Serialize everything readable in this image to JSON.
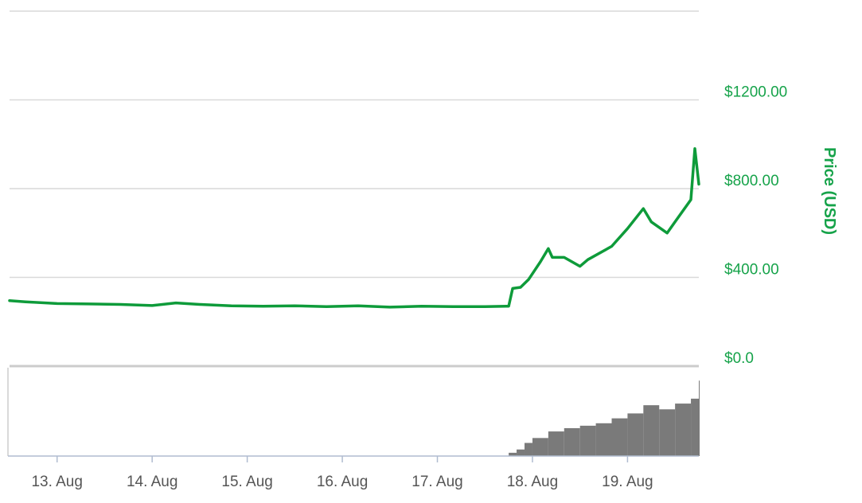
{
  "chart_data": {
    "type": "line",
    "title": "",
    "xlabel": "",
    "ylabel": "Price (USD)",
    "x_tick_labels": [
      "13. Aug",
      "14. Aug",
      "15. Aug",
      "16. Aug",
      "17. Aug",
      "18. Aug",
      "19. Aug"
    ],
    "y_tick_labels": [
      "$0.0",
      "$400.00",
      "$800.00",
      "$1200.00"
    ],
    "ylim": [
      0,
      1600
    ],
    "xlim": [
      "2017-08-12 12:00",
      "2017-08-19 18:00"
    ],
    "grid": true,
    "legend": "none",
    "colors": {
      "price_line": "#0e9b3a",
      "axis_text": "#16a34a",
      "tick_text": "#555555",
      "grid": "#d9d9d9",
      "volume": "#7a7a7a"
    },
    "series": [
      {
        "name": "Price (USD)",
        "x": [
          "2017-08-12 12:00",
          "2017-08-12 16:00",
          "2017-08-13 00:00",
          "2017-08-13 08:00",
          "2017-08-13 16:00",
          "2017-08-14 00:00",
          "2017-08-14 06:00",
          "2017-08-14 12:00",
          "2017-08-14 20:00",
          "2017-08-15 04:00",
          "2017-08-15 12:00",
          "2017-08-15 20:00",
          "2017-08-16 04:00",
          "2017-08-16 12:00",
          "2017-08-16 20:00",
          "2017-08-17 04:00",
          "2017-08-17 12:00",
          "2017-08-17 18:00",
          "2017-08-17 19:00",
          "2017-08-17 21:00",
          "2017-08-17 23:00",
          "2017-08-18 02:00",
          "2017-08-18 04:00",
          "2017-08-18 05:00",
          "2017-08-18 08:00",
          "2017-08-18 12:00",
          "2017-08-18 14:00",
          "2017-08-18 20:00",
          "2017-08-19 00:00",
          "2017-08-19 04:00",
          "2017-08-19 06:00",
          "2017-08-19 10:00",
          "2017-08-19 12:00",
          "2017-08-19 16:00",
          "2017-08-19 17:00",
          "2017-08-19 18:00"
        ],
        "y": [
          295,
          290,
          282,
          280,
          278,
          273,
          285,
          278,
          272,
          270,
          272,
          268,
          272,
          266,
          270,
          268,
          268,
          270,
          350,
          355,
          390,
          470,
          530,
          490,
          490,
          450,
          480,
          540,
          620,
          710,
          650,
          600,
          650,
          750,
          980,
          820
        ]
      }
    ],
    "volume": {
      "name": "Volume",
      "x": [
        "2017-08-17 18:00",
        "2017-08-17 20:00",
        "2017-08-17 22:00",
        "2017-08-18 00:00",
        "2017-08-18 04:00",
        "2017-08-18 08:00",
        "2017-08-18 12:00",
        "2017-08-18 16:00",
        "2017-08-18 20:00",
        "2017-08-19 00:00",
        "2017-08-19 04:00",
        "2017-08-19 08:00",
        "2017-08-19 12:00",
        "2017-08-19 16:00",
        "2017-08-19 18:00"
      ],
      "values": [
        0.04,
        0.08,
        0.16,
        0.22,
        0.3,
        0.34,
        0.37,
        0.4,
        0.46,
        0.52,
        0.62,
        0.57,
        0.64,
        0.7,
        0.92
      ]
    }
  }
}
